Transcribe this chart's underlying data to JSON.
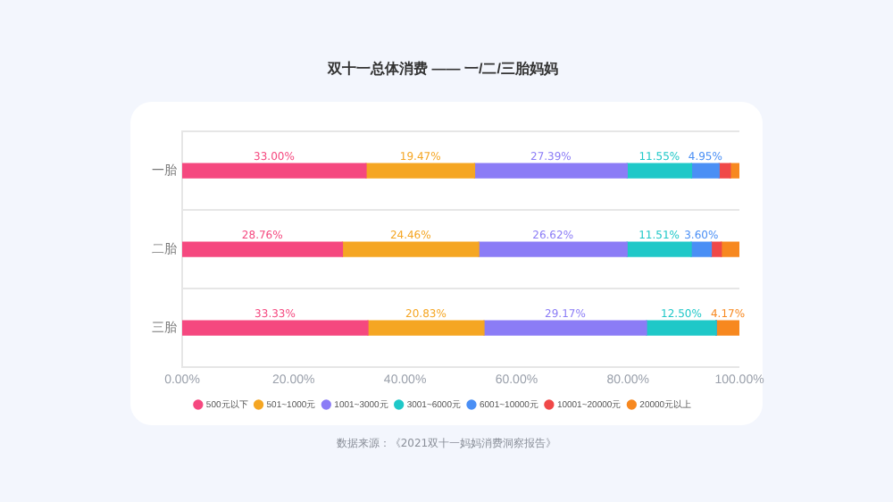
{
  "chart_data": {
    "type": "bar",
    "orientation": "horizontal",
    "stacked": true,
    "title": "双十一总体消费 —— 一/二/三胎妈妈",
    "categories": [
      "一胎",
      "二胎",
      "三胎"
    ],
    "series": [
      {
        "name": "500元以下",
        "color": "#f5487f",
        "values": [
          33.0,
          28.76,
          33.33
        ],
        "value_labels": [
          "33.00%",
          "28.76%",
          "33.33%"
        ]
      },
      {
        "name": "501~1000元",
        "color": "#f5a623",
        "values": [
          19.47,
          24.46,
          20.83
        ],
        "value_labels": [
          "19.47%",
          "24.46%",
          "20.83%"
        ]
      },
      {
        "name": "1001~3000元",
        "color": "#8b7cf6",
        "values": [
          27.39,
          26.62,
          29.17
        ],
        "value_labels": [
          "27.39%",
          "26.62%",
          "29.17%"
        ]
      },
      {
        "name": "3001~6000元",
        "color": "#1fc8c8",
        "values": [
          11.55,
          11.51,
          12.5
        ],
        "value_labels": [
          "11.55%",
          "11.51%",
          "12.50%"
        ]
      },
      {
        "name": "6001~10000元",
        "color": "#4a8ff5",
        "values": [
          4.95,
          3.6,
          0
        ],
        "value_labels": [
          "4.95%",
          "3.60%",
          null
        ]
      },
      {
        "name": "10001~20000元",
        "color": "#f04848",
        "values": [
          2.0,
          1.8,
          0
        ],
        "value_labels": [
          null,
          null,
          null
        ]
      },
      {
        "name": "20000元以上",
        "color": "#f7881f",
        "values": [
          1.64,
          3.25,
          4.17
        ],
        "value_labels": [
          null,
          null,
          "4.17%"
        ]
      }
    ],
    "xlim": [
      0,
      100
    ],
    "xticks": [
      {
        "value": 0,
        "label": "0.00%"
      },
      {
        "value": 20,
        "label": "20.00%"
      },
      {
        "value": 40,
        "label": "40.00%"
      },
      {
        "value": 60,
        "label": "60.00%"
      },
      {
        "value": 80,
        "label": "80.00%"
      },
      {
        "value": 100,
        "label": "100.00%"
      }
    ],
    "grid": "y",
    "legend": "bottom",
    "annotations": [
      "数据来源：《2021双十一妈妈消费洞察报告》"
    ]
  }
}
